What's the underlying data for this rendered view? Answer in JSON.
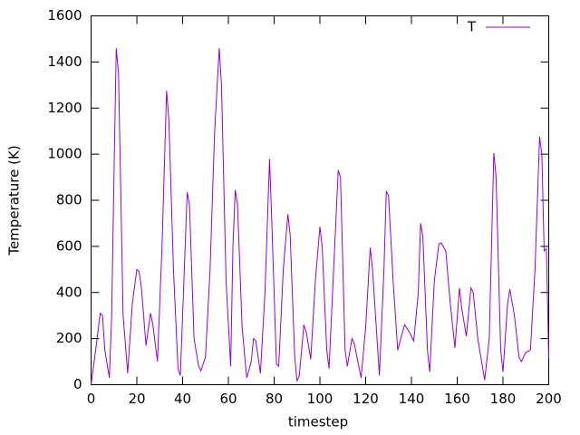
{
  "chart_data": {
    "type": "line",
    "xlabel": "timestep",
    "ylabel": "Temperature (K)",
    "x": [
      0,
      2,
      4,
      5,
      6,
      8,
      9,
      10,
      11,
      12,
      14,
      16,
      18,
      20,
      21,
      22,
      24,
      26,
      27,
      29,
      31,
      33,
      34,
      36,
      38,
      39,
      40,
      42,
      43,
      45,
      47,
      48,
      50,
      52,
      54,
      56,
      57,
      59,
      61,
      62,
      63,
      64,
      66,
      68,
      70,
      71,
      72,
      74,
      76,
      78,
      79,
      81,
      82,
      84,
      86,
      87,
      89,
      90,
      91,
      93,
      94,
      96,
      98,
      100,
      101,
      103,
      104,
      106,
      108,
      109,
      111,
      112,
      114,
      115,
      118,
      120,
      122,
      123,
      126,
      128,
      129,
      130,
      132,
      134,
      137,
      139,
      141,
      143,
      144,
      145,
      147,
      148,
      150,
      152,
      153,
      155,
      157,
      159,
      161,
      162,
      164,
      166,
      167,
      169,
      172,
      174,
      176,
      177,
      179,
      180,
      182,
      183,
      185,
      187,
      188,
      190,
      192,
      194,
      196,
      197,
      198,
      199,
      200
    ],
    "series": [
      {
        "name": "T",
        "color": "#9400d3",
        "values": [
          0,
          150,
          310,
          300,
          150,
          30,
          300,
          900,
          1460,
          1350,
          300,
          50,
          350,
          500,
          490,
          420,
          170,
          310,
          260,
          100,
          600,
          1275,
          1150,
          500,
          70,
          40,
          300,
          835,
          780,
          200,
          80,
          60,
          120,
          500,
          1100,
          1460,
          1300,
          450,
          80,
          600,
          845,
          780,
          250,
          30,
          100,
          200,
          190,
          50,
          400,
          980,
          700,
          90,
          80,
          500,
          740,
          650,
          120,
          15,
          40,
          260,
          230,
          110,
          450,
          685,
          600,
          150,
          70,
          500,
          930,
          900,
          150,
          80,
          200,
          180,
          30,
          250,
          595,
          500,
          40,
          500,
          840,
          820,
          450,
          150,
          260,
          230,
          190,
          400,
          700,
          640,
          150,
          55,
          450,
          610,
          615,
          580,
          350,
          160,
          420,
          330,
          210,
          420,
          400,
          200,
          20,
          200,
          1005,
          900,
          150,
          55,
          350,
          415,
          300,
          120,
          100,
          140,
          150,
          500,
          1075,
          1000,
          580,
          590,
          110
        ]
      }
    ],
    "xlim": [
      0,
      200
    ],
    "ylim": [
      0,
      1600
    ],
    "xticks": [
      0,
      20,
      40,
      60,
      80,
      100,
      120,
      140,
      160,
      180,
      200
    ],
    "yticks": [
      0,
      200,
      400,
      600,
      800,
      1000,
      1200,
      1400,
      1600
    ],
    "legend": "upper right"
  }
}
